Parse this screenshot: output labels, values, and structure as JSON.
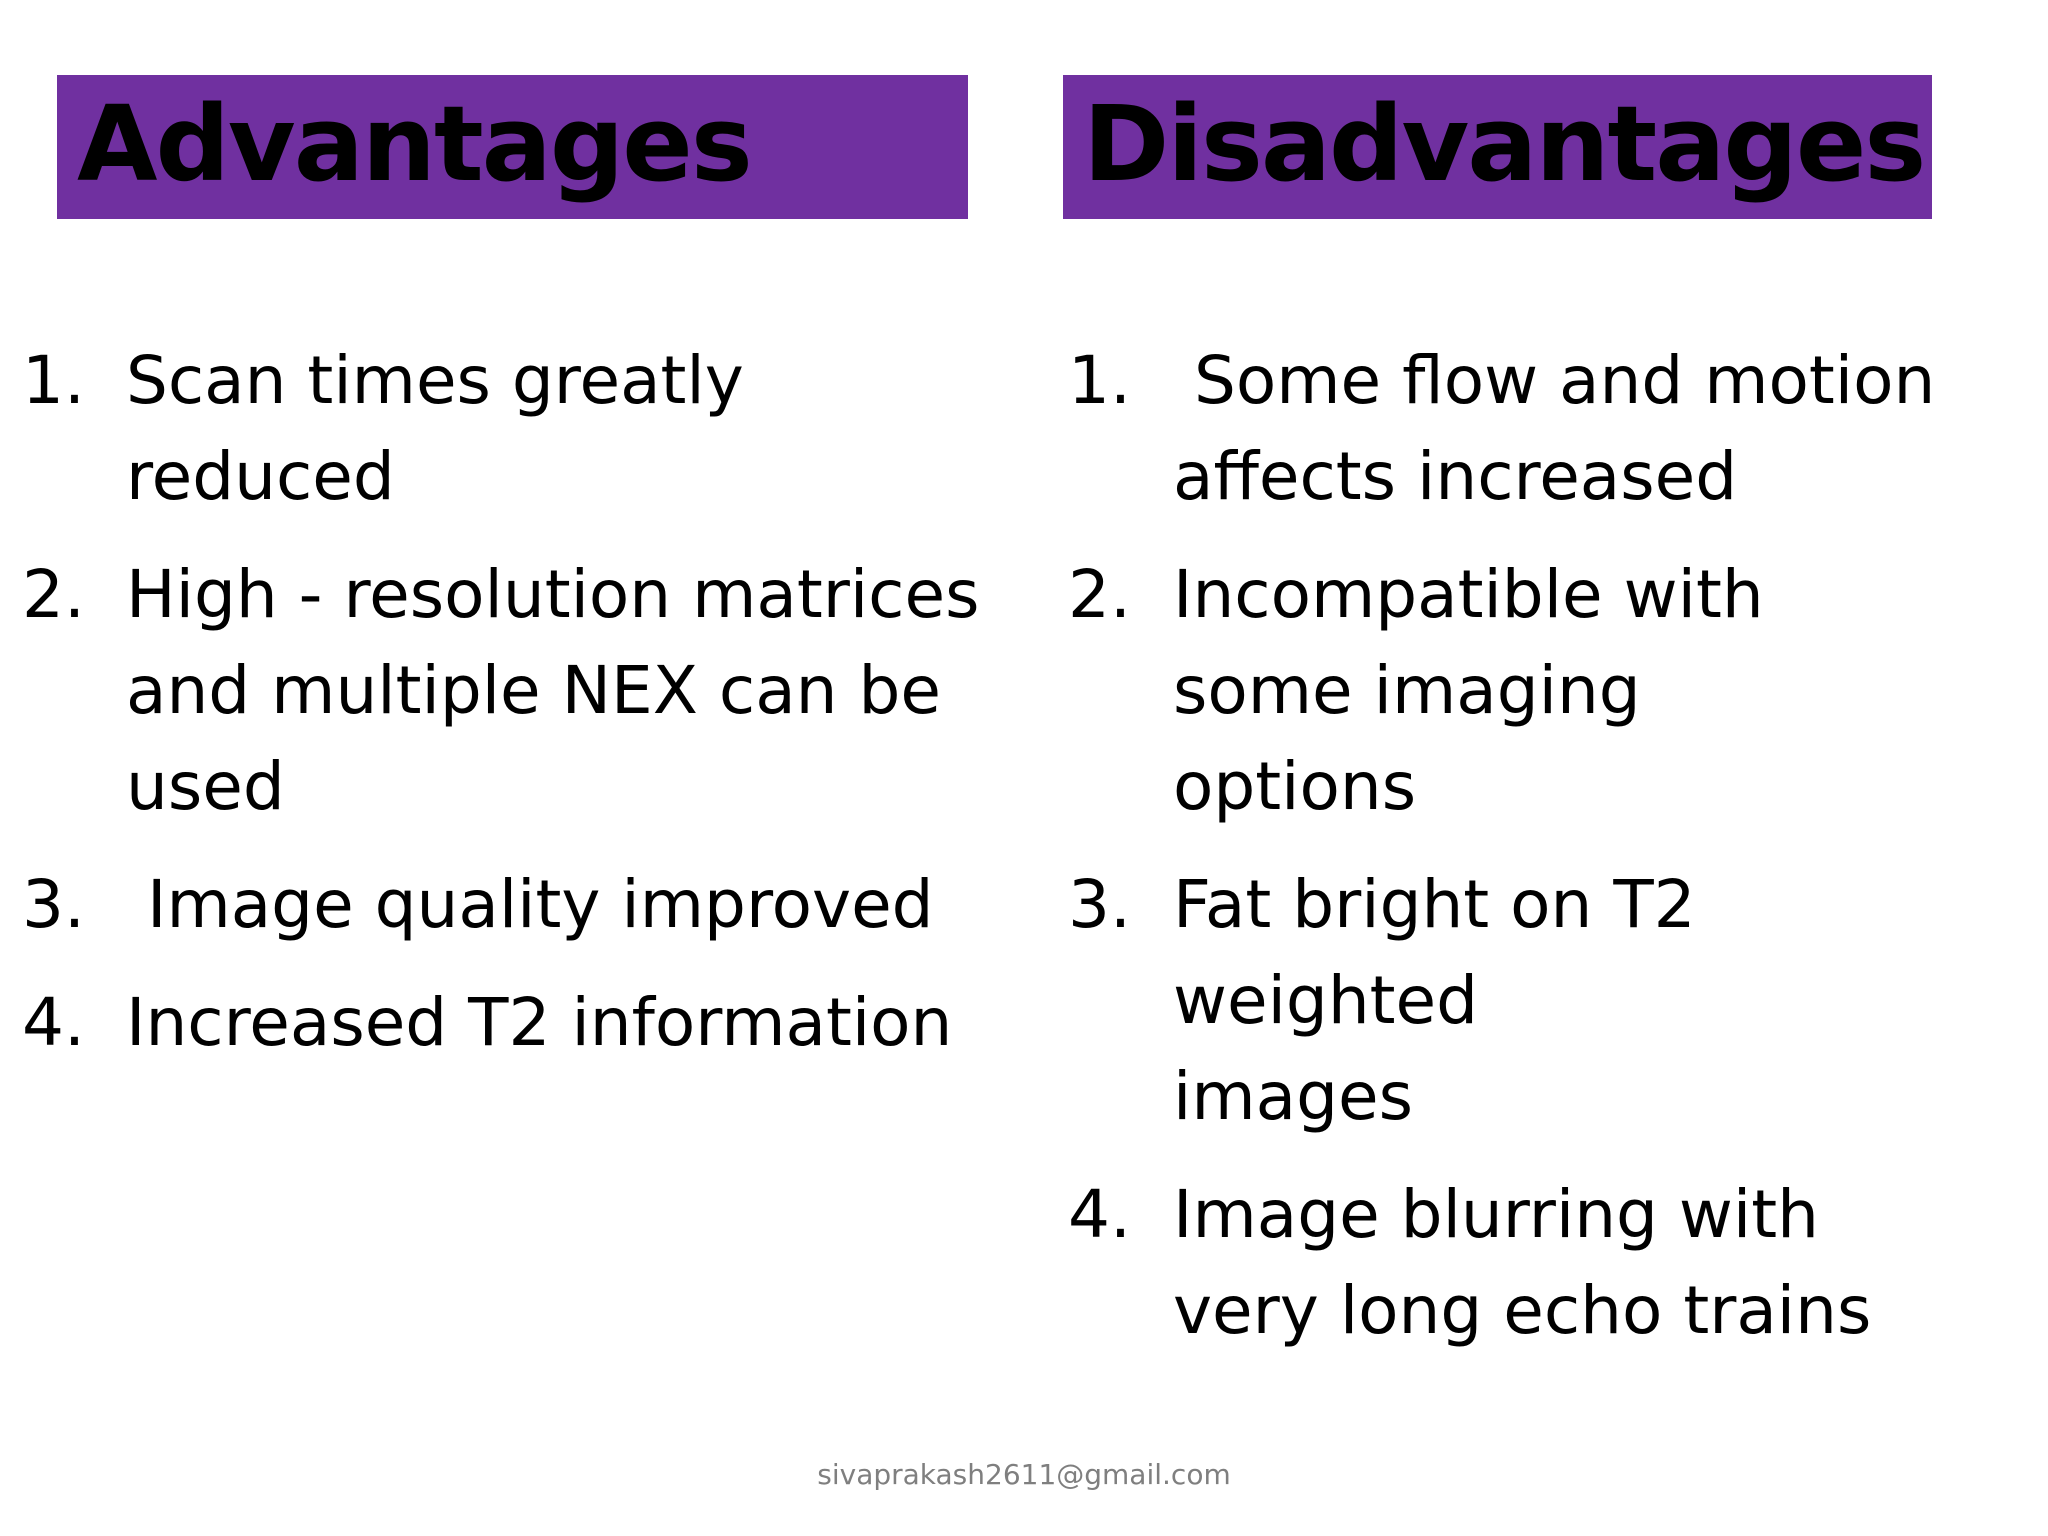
{
  "colors": {
    "header_background": "#7030a0",
    "text": "#000000",
    "footer_text": "#7f7f7f"
  },
  "advantages": {
    "title": "Advantages",
    "items": [
      {
        "number": "1.",
        "text": "Scan times greatly reduced"
      },
      {
        "number": "2.",
        "text": "High - resolution matrices and multiple NEX can be used"
      },
      {
        "number": "3.",
        "text": " Image quality improved"
      },
      {
        "number": "4.",
        "text": "Increased T2 information"
      }
    ]
  },
  "disadvantages": {
    "title": "Disadvantages",
    "items": [
      {
        "number": "1.",
        "text": " Some flow and motion affects increased"
      },
      {
        "number": "2.",
        "text": "Incompatible with some imaging options"
      },
      {
        "number": "3.",
        "text": "Fat bright on T2 weighted images"
      },
      {
        "number": "4.",
        "text": "Image blurring with very long echo trains"
      }
    ]
  },
  "footer": {
    "email": "sivaprakash2611@gmail.com"
  }
}
